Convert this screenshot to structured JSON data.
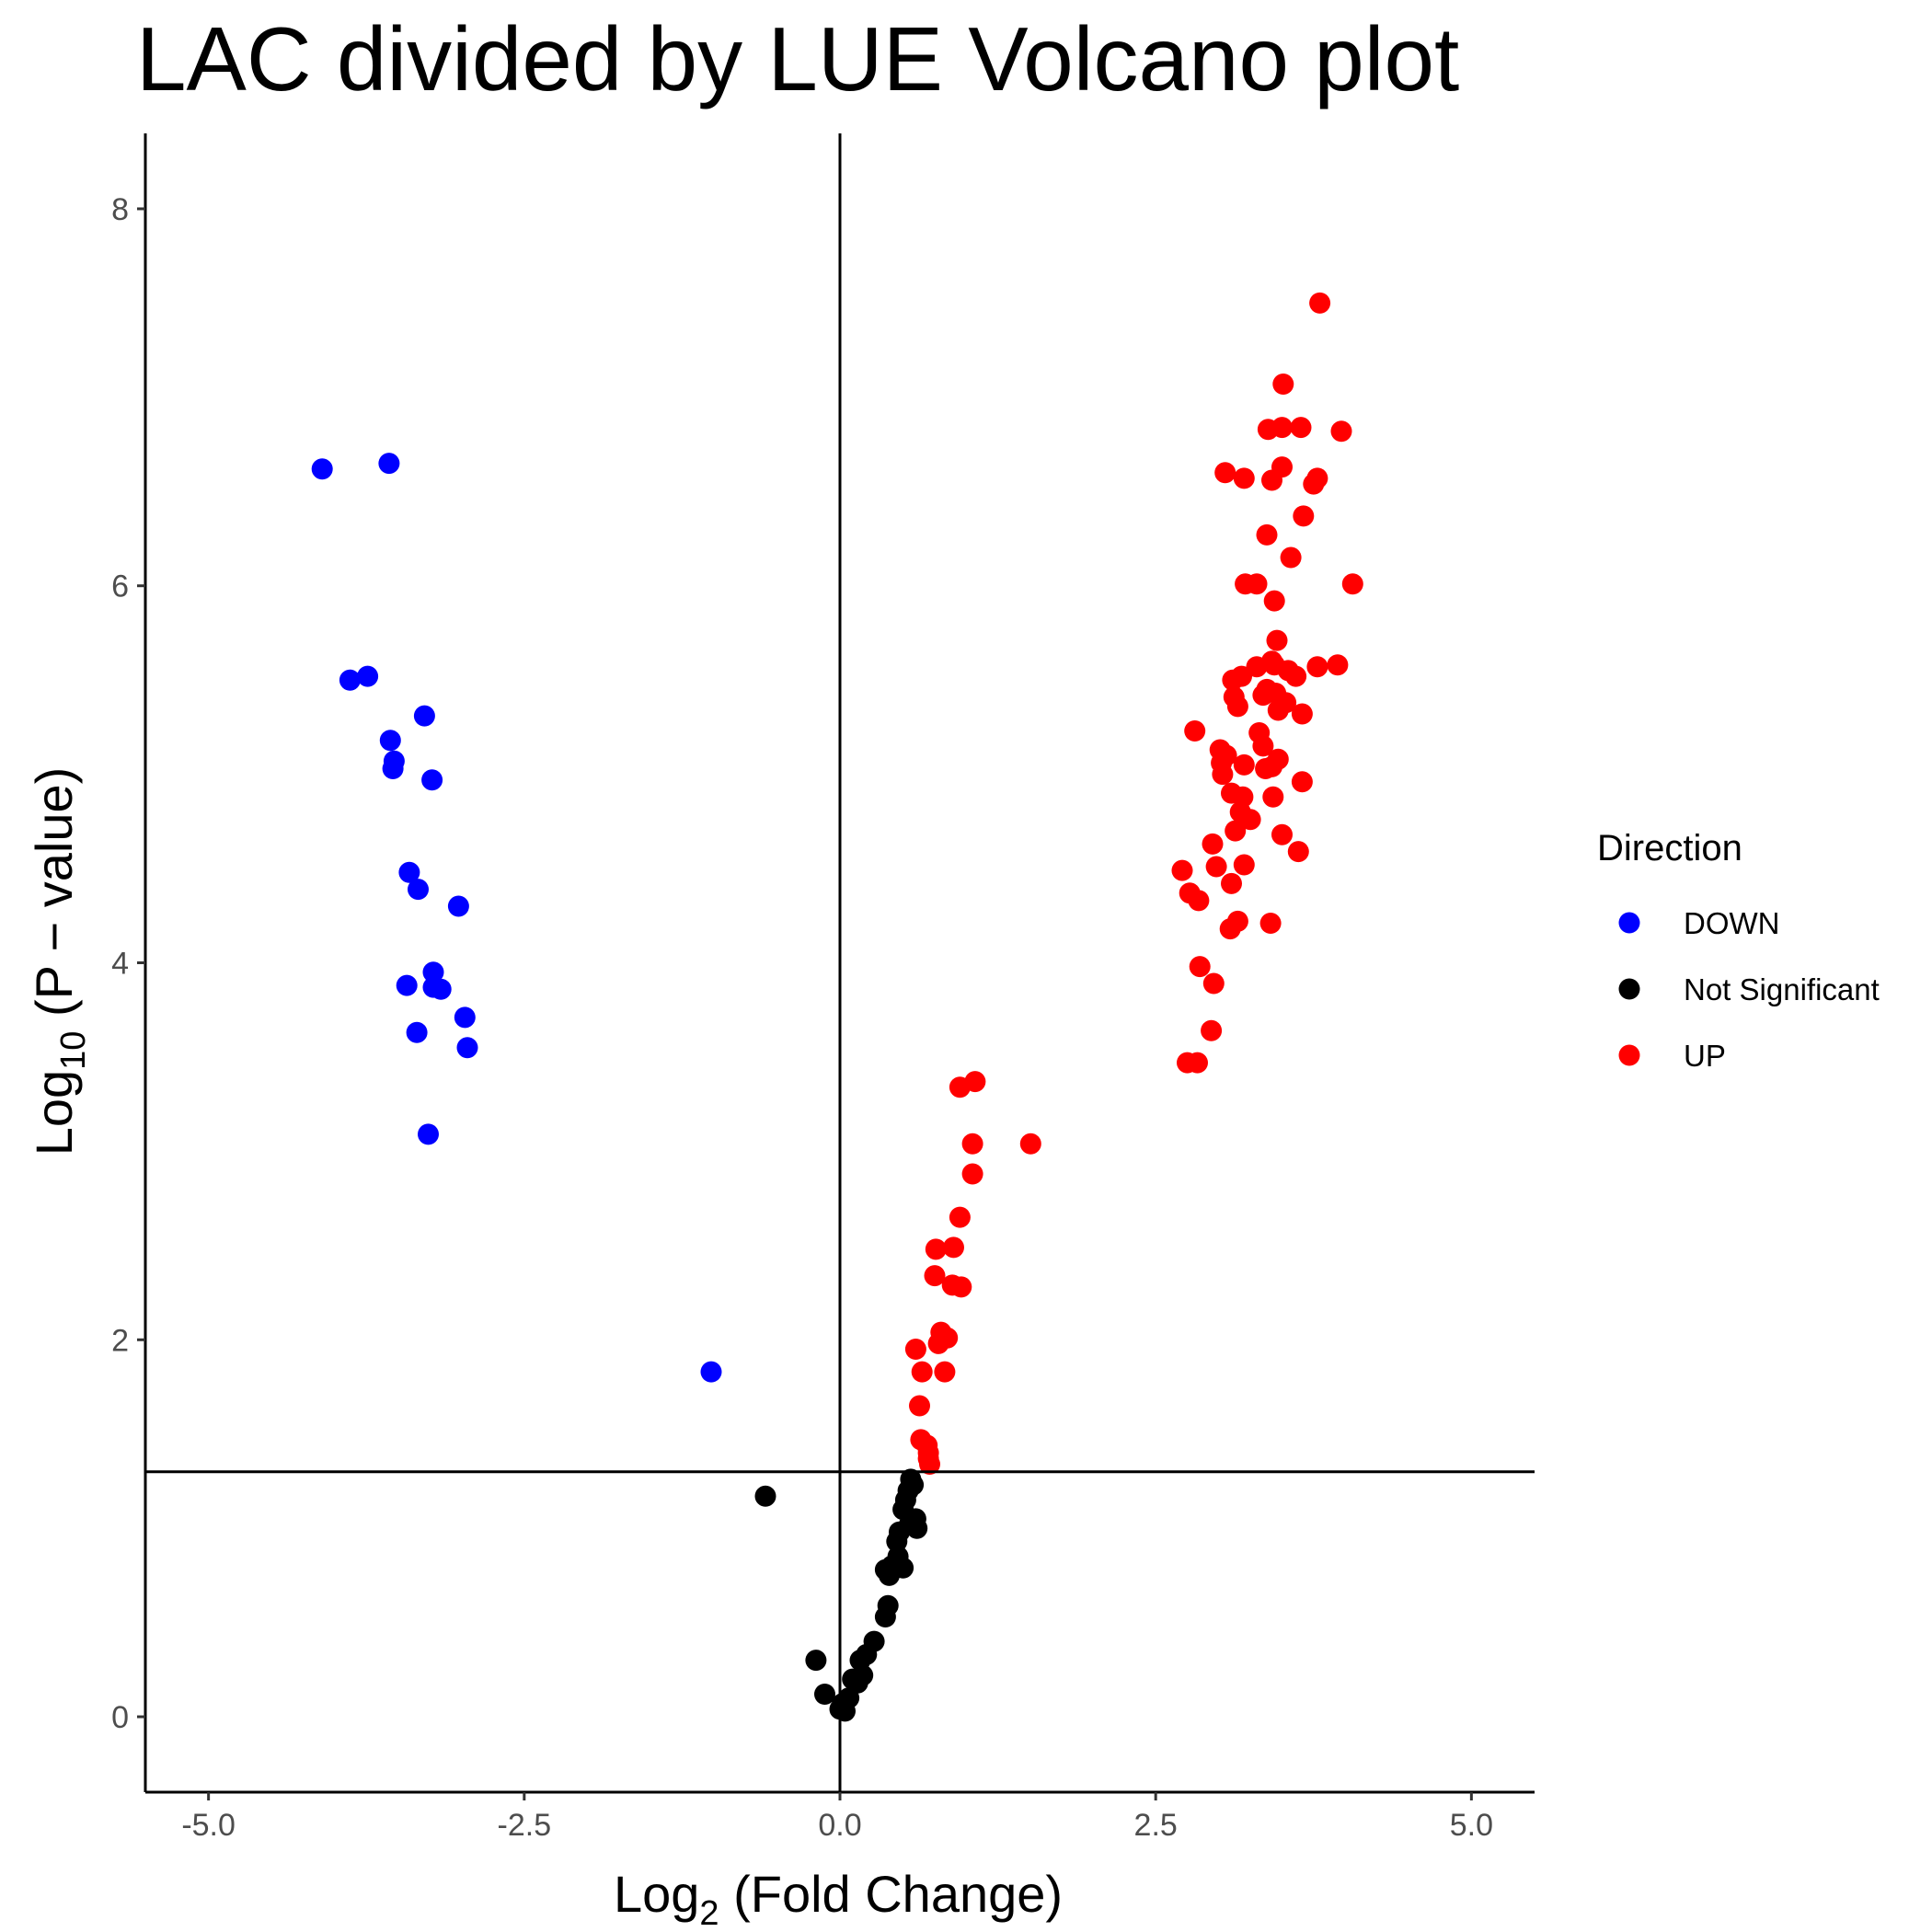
{
  "chart_data": {
    "type": "scatter",
    "title": "LAC divided by LUE Volcano plot",
    "xlabel": {
      "prefix": "Log",
      "sub": "2",
      "suffix": " (Fold Change)"
    },
    "ylabel": {
      "prefix": "Log",
      "sub": "10",
      "suffix": " (P − value)"
    },
    "xlim": [
      -5.5,
      5.5
    ],
    "ylim": [
      -0.4,
      8.4
    ],
    "x_ticks": [
      {
        "value": -5.0,
        "label": "-5.0"
      },
      {
        "value": -2.5,
        "label": "-2.5"
      },
      {
        "value": 0.0,
        "label": "0.0"
      },
      {
        "value": 2.5,
        "label": "2.5"
      },
      {
        "value": 5.0,
        "label": "5.0"
      }
    ],
    "y_ticks": [
      {
        "value": 0,
        "label": "0"
      },
      {
        "value": 2,
        "label": "2"
      },
      {
        "value": 4,
        "label": "4"
      },
      {
        "value": 6,
        "label": "6"
      },
      {
        "value": 8,
        "label": "8"
      }
    ],
    "grid": false,
    "reference_lines": {
      "vertical_x": 0,
      "horizontal_y": 1.3
    },
    "legend": {
      "title": "Direction",
      "position": "right"
    },
    "series": [
      {
        "name": "DOWN",
        "color": "#0000ff",
        "points": [
          [
            -4.1,
            6.62
          ],
          [
            -3.57,
            6.65
          ],
          [
            -3.88,
            5.5
          ],
          [
            -3.74,
            5.52
          ],
          [
            -3.29,
            5.31
          ],
          [
            -3.56,
            5.18
          ],
          [
            -3.53,
            5.07
          ],
          [
            -3.54,
            5.03
          ],
          [
            -3.23,
            4.97
          ],
          [
            -3.41,
            4.48
          ],
          [
            -3.34,
            4.39
          ],
          [
            -3.02,
            4.3
          ],
          [
            -3.22,
            3.95
          ],
          [
            -3.43,
            3.88
          ],
          [
            -3.22,
            3.87
          ],
          [
            -3.16,
            3.86
          ],
          [
            -2.97,
            3.71
          ],
          [
            -3.35,
            3.63
          ],
          [
            -2.95,
            3.55
          ],
          [
            -3.26,
            3.09
          ],
          [
            -1.02,
            1.83
          ]
        ]
      },
      {
        "name": "Not Significant",
        "color": "#000000",
        "points": [
          [
            -0.59,
            1.17
          ],
          [
            0.56,
            1.26
          ],
          [
            0.58,
            1.23
          ],
          [
            0.54,
            1.2
          ],
          [
            0.52,
            1.15
          ],
          [
            0.5,
            1.1
          ],
          [
            0.6,
            1.05
          ],
          [
            0.55,
            1.02
          ],
          [
            0.61,
            1.0
          ],
          [
            0.47,
            0.98
          ],
          [
            0.45,
            0.93
          ],
          [
            0.46,
            0.85
          ],
          [
            0.41,
            0.8
          ],
          [
            0.5,
            0.79
          ],
          [
            0.36,
            0.78
          ],
          [
            0.39,
            0.75
          ],
          [
            0.38,
            0.59
          ],
          [
            0.36,
            0.53
          ],
          [
            0.27,
            0.4
          ],
          [
            0.21,
            0.33
          ],
          [
            0.16,
            0.3
          ],
          [
            -0.19,
            0.3
          ],
          [
            0.18,
            0.22
          ],
          [
            0.1,
            0.2
          ],
          [
            0.14,
            0.18
          ],
          [
            -0.12,
            0.12
          ],
          [
            0.07,
            0.1
          ],
          [
            0.02,
            0.07
          ],
          [
            0.0,
            0.04
          ],
          [
            0.04,
            0.03
          ]
        ]
      },
      {
        "name": "UP",
        "color": "#ff0000",
        "points": [
          [
            3.8,
            7.5
          ],
          [
            3.51,
            7.07
          ],
          [
            3.39,
            6.83
          ],
          [
            3.5,
            6.84
          ],
          [
            3.65,
            6.84
          ],
          [
            3.97,
            6.82
          ],
          [
            3.5,
            6.63
          ],
          [
            3.05,
            6.6
          ],
          [
            3.2,
            6.57
          ],
          [
            3.42,
            6.56
          ],
          [
            3.78,
            6.57
          ],
          [
            3.75,
            6.54
          ],
          [
            3.67,
            6.37
          ],
          [
            3.38,
            6.27
          ],
          [
            3.57,
            6.15
          ],
          [
            3.21,
            6.01
          ],
          [
            3.3,
            6.01
          ],
          [
            4.06,
            6.01
          ],
          [
            3.44,
            5.92
          ],
          [
            3.46,
            5.71
          ],
          [
            3.42,
            5.6
          ],
          [
            3.44,
            5.58
          ],
          [
            3.78,
            5.57
          ],
          [
            3.94,
            5.58
          ],
          [
            3.3,
            5.57
          ],
          [
            3.55,
            5.55
          ],
          [
            3.61,
            5.52
          ],
          [
            3.18,
            5.52
          ],
          [
            3.11,
            5.5
          ],
          [
            3.38,
            5.45
          ],
          [
            3.45,
            5.43
          ],
          [
            3.12,
            5.41
          ],
          [
            3.53,
            5.38
          ],
          [
            3.15,
            5.36
          ],
          [
            3.47,
            5.34
          ],
          [
            3.35,
            5.42
          ],
          [
            3.66,
            5.32
          ],
          [
            2.81,
            5.23
          ],
          [
            3.32,
            5.22
          ],
          [
            3.35,
            5.15
          ],
          [
            3.01,
            5.13
          ],
          [
            3.06,
            5.1
          ],
          [
            3.47,
            5.08
          ],
          [
            3.02,
            5.06
          ],
          [
            3.2,
            5.05
          ],
          [
            3.42,
            5.04
          ],
          [
            3.37,
            5.03
          ],
          [
            3.03,
            5.0
          ],
          [
            3.66,
            4.96
          ],
          [
            3.1,
            4.9
          ],
          [
            3.19,
            4.88
          ],
          [
            3.43,
            4.88
          ],
          [
            3.17,
            4.8
          ],
          [
            3.25,
            4.76
          ],
          [
            3.13,
            4.7
          ],
          [
            3.5,
            4.68
          ],
          [
            2.95,
            4.63
          ],
          [
            3.63,
            4.59
          ],
          [
            2.98,
            4.51
          ],
          [
            3.2,
            4.52
          ],
          [
            2.71,
            4.49
          ],
          [
            3.1,
            4.42
          ],
          [
            2.77,
            4.37
          ],
          [
            2.84,
            4.33
          ],
          [
            3.15,
            4.22
          ],
          [
            3.41,
            4.21
          ],
          [
            3.09,
            4.18
          ],
          [
            2.85,
            3.98
          ],
          [
            2.96,
            3.89
          ],
          [
            2.94,
            3.64
          ],
          [
            2.75,
            3.47
          ],
          [
            2.83,
            3.47
          ],
          [
            1.07,
            3.37
          ],
          [
            0.95,
            3.34
          ],
          [
            1.51,
            3.04
          ],
          [
            1.05,
            3.04
          ],
          [
            1.05,
            2.88
          ],
          [
            0.95,
            2.65
          ],
          [
            0.76,
            2.48
          ],
          [
            0.9,
            2.49
          ],
          [
            0.75,
            2.34
          ],
          [
            0.89,
            2.29
          ],
          [
            0.96,
            2.28
          ],
          [
            0.8,
            2.04
          ],
          [
            0.85,
            2.01
          ],
          [
            0.78,
            1.98
          ],
          [
            0.6,
            1.95
          ],
          [
            0.65,
            1.83
          ],
          [
            0.83,
            1.83
          ],
          [
            0.63,
            1.65
          ],
          [
            0.64,
            1.47
          ],
          [
            0.69,
            1.44
          ],
          [
            0.7,
            1.4
          ],
          [
            0.7,
            1.37
          ],
          [
            0.71,
            1.34
          ]
        ]
      }
    ]
  }
}
